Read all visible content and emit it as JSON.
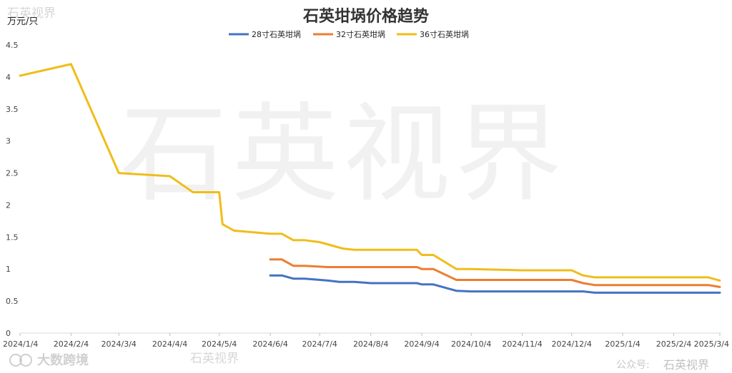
{
  "watermarks": {
    "top_left": "石英视界",
    "center": "石英视界",
    "bottom_center": "石英视界",
    "brand": "大数跨境",
    "account_label": "公众号:",
    "account_name": "石英视界"
  },
  "chart_data": {
    "type": "line",
    "title": "石英坩埚价格趋势",
    "ylabel": "万元/只",
    "xlabel": "",
    "ylim": [
      0,
      4.5
    ],
    "yticks": [
      "0",
      "0.5",
      "1",
      "1.5",
      "2",
      "2.5",
      "3",
      "3.5",
      "4",
      "4.5"
    ],
    "xticks": [
      "2024/1/4",
      "2024/2/4",
      "2024/3/4",
      "2024/4/4",
      "2024/5/4",
      "2024/6/4",
      "2024/7/4",
      "2024/8/4",
      "2024/9/4",
      "2024/10/4",
      "2024/11/4",
      "2024/12/4",
      "2025/1/4",
      "2025/2/4",
      "2025/3/4"
    ],
    "x_start": "2024-01-04",
    "x_end": "2025-03-04",
    "legend_position": "top-center",
    "grid": false,
    "series": [
      {
        "name": "28寸石英坩埚",
        "color": "#4472c4",
        "points": [
          [
            "2024-06-04",
            0.9
          ],
          [
            "2024-06-11",
            0.9
          ],
          [
            "2024-06-18",
            0.85
          ],
          [
            "2024-06-25",
            0.85
          ],
          [
            "2024-07-09",
            0.82
          ],
          [
            "2024-07-16",
            0.8
          ],
          [
            "2024-07-25",
            0.8
          ],
          [
            "2024-08-04",
            0.78
          ],
          [
            "2024-08-25",
            0.78
          ],
          [
            "2024-09-01",
            0.78
          ],
          [
            "2024-09-04",
            0.76
          ],
          [
            "2024-09-11",
            0.76
          ],
          [
            "2024-09-25",
            0.66
          ],
          [
            "2024-10-04",
            0.65
          ],
          [
            "2024-11-04",
            0.65
          ],
          [
            "2024-12-04",
            0.65
          ],
          [
            "2024-12-11",
            0.65
          ],
          [
            "2024-12-18",
            0.63
          ],
          [
            "2025-01-04",
            0.63
          ],
          [
            "2025-02-04",
            0.63
          ],
          [
            "2025-03-04",
            0.63
          ]
        ]
      },
      {
        "name": "32寸石英坩埚",
        "color": "#ed7d31",
        "points": [
          [
            "2024-06-04",
            1.15
          ],
          [
            "2024-06-11",
            1.15
          ],
          [
            "2024-06-18",
            1.05
          ],
          [
            "2024-06-25",
            1.05
          ],
          [
            "2024-07-09",
            1.03
          ],
          [
            "2024-08-04",
            1.03
          ],
          [
            "2024-09-01",
            1.03
          ],
          [
            "2024-09-04",
            1.0
          ],
          [
            "2024-09-11",
            1.0
          ],
          [
            "2024-09-25",
            0.83
          ],
          [
            "2024-10-04",
            0.83
          ],
          [
            "2024-11-04",
            0.83
          ],
          [
            "2024-12-04",
            0.83
          ],
          [
            "2024-12-11",
            0.78
          ],
          [
            "2024-12-18",
            0.75
          ],
          [
            "2025-01-04",
            0.75
          ],
          [
            "2025-02-04",
            0.75
          ],
          [
            "2025-02-25",
            0.75
          ],
          [
            "2025-03-04",
            0.72
          ]
        ]
      },
      {
        "name": "36寸石英坩埚",
        "color": "#f0bd1a",
        "points": [
          [
            "2024-01-04",
            4.02
          ],
          [
            "2024-02-04",
            4.2
          ],
          [
            "2024-03-04",
            2.5
          ],
          [
            "2024-04-04",
            2.45
          ],
          [
            "2024-04-18",
            2.2
          ],
          [
            "2024-05-04",
            2.2
          ],
          [
            "2024-05-06",
            1.7
          ],
          [
            "2024-05-13",
            1.6
          ],
          [
            "2024-06-04",
            1.55
          ],
          [
            "2024-06-11",
            1.55
          ],
          [
            "2024-06-18",
            1.45
          ],
          [
            "2024-06-25",
            1.45
          ],
          [
            "2024-07-04",
            1.42
          ],
          [
            "2024-07-18",
            1.32
          ],
          [
            "2024-07-25",
            1.3
          ],
          [
            "2024-08-04",
            1.3
          ],
          [
            "2024-09-01",
            1.3
          ],
          [
            "2024-09-04",
            1.22
          ],
          [
            "2024-09-11",
            1.22
          ],
          [
            "2024-09-25",
            1.0
          ],
          [
            "2024-10-04",
            1.0
          ],
          [
            "2024-11-04",
            0.98
          ],
          [
            "2024-12-04",
            0.98
          ],
          [
            "2024-12-11",
            0.9
          ],
          [
            "2024-12-18",
            0.87
          ],
          [
            "2025-01-04",
            0.87
          ],
          [
            "2025-02-04",
            0.87
          ],
          [
            "2025-02-25",
            0.87
          ],
          [
            "2025-03-04",
            0.82
          ]
        ]
      }
    ]
  }
}
